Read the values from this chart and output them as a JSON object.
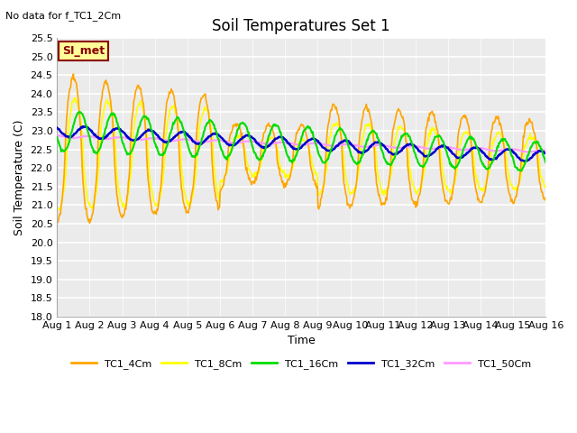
{
  "title": "Soil Temperatures Set 1",
  "ylabel": "Soil Temperature (C)",
  "xlabel": "Time",
  "note": "No data for f_TC1_2Cm",
  "annotation": "SI_met",
  "ylim": [
    18.0,
    25.5
  ],
  "ytick_step": 0.5,
  "xtick_labels": [
    "Aug 1",
    "Aug 2",
    "Aug 3",
    "Aug 4",
    "Aug 5",
    "Aug 6",
    "Aug 7",
    "Aug 8",
    "Aug 9",
    "Aug 10",
    "Aug 11",
    "Aug 12",
    "Aug 13",
    "Aug 14",
    "Aug 15",
    "Aug 16"
  ],
  "series": {
    "TC1_4Cm": {
      "color": "#FFA500",
      "lw": 1.2
    },
    "TC1_8Cm": {
      "color": "#FFFF00",
      "lw": 1.2
    },
    "TC1_16Cm": {
      "color": "#00DD00",
      "lw": 1.5
    },
    "TC1_32Cm": {
      "color": "#0000CC",
      "lw": 1.8
    },
    "TC1_50Cm": {
      "color": "#FF99FF",
      "lw": 1.5
    }
  },
  "plot_bg": "#EBEBEB",
  "grid_color": "white",
  "title_fontsize": 12,
  "axis_fontsize": 9,
  "tick_fontsize": 8
}
